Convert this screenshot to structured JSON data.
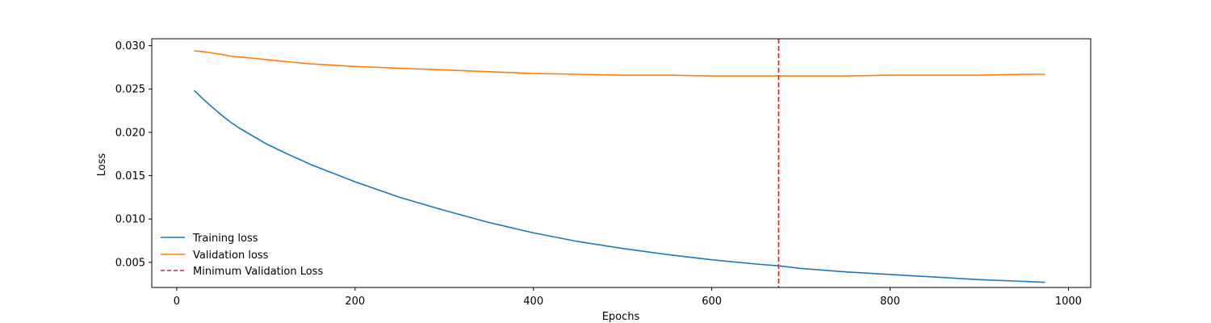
{
  "chart_data": {
    "type": "line",
    "title": "",
    "xlabel": "Epochs",
    "ylabel": "Loss",
    "xlim": [
      -28,
      1025
    ],
    "ylim": [
      0.0021,
      0.0308
    ],
    "xticks": [
      0,
      200,
      400,
      600,
      800,
      1000
    ],
    "xtick_labels": [
      "0",
      "200",
      "400",
      "600",
      "800",
      "1000"
    ],
    "yticks": [
      0.005,
      0.01,
      0.015,
      0.02,
      0.025,
      0.03
    ],
    "ytick_labels": [
      "0.005",
      "0.010",
      "0.015",
      "0.020",
      "0.025",
      "0.030"
    ],
    "grid": false,
    "legend_position": "lower-left",
    "series": [
      {
        "name": "Training loss",
        "color": "#1f77b4",
        "style": "solid",
        "x": [
          20,
          30,
          40,
          50,
          60,
          70,
          80,
          100,
          120,
          150,
          200,
          250,
          300,
          350,
          400,
          450,
          500,
          550,
          600,
          650,
          675,
          700,
          750,
          800,
          850,
          900,
          950,
          973
        ],
        "y": [
          0.0248,
          0.0238,
          0.0229,
          0.022,
          0.0212,
          0.0205,
          0.0199,
          0.0187,
          0.0177,
          0.0163,
          0.0143,
          0.0125,
          0.011,
          0.0096,
          0.0084,
          0.0074,
          0.0066,
          0.0059,
          0.0053,
          0.0048,
          0.0046,
          0.0043,
          0.0039,
          0.0036,
          0.0033,
          0.003,
          0.0028,
          0.0027
        ]
      },
      {
        "name": "Validation loss",
        "color": "#ff7f0e",
        "style": "solid",
        "x": [
          20,
          30,
          50,
          60,
          80,
          100,
          120,
          130,
          150,
          200,
          250,
          300,
          350,
          400,
          450,
          500,
          550,
          600,
          650,
          700,
          750,
          800,
          850,
          900,
          950,
          973
        ],
        "y": [
          0.0294,
          0.0293,
          0.029,
          0.0288,
          0.0286,
          0.0284,
          0.0282,
          0.0281,
          0.0279,
          0.0276,
          0.0274,
          0.0272,
          0.027,
          0.0268,
          0.0267,
          0.0266,
          0.0266,
          0.0265,
          0.0265,
          0.0265,
          0.0265,
          0.0266,
          0.0266,
          0.0266,
          0.0267,
          0.0267
        ]
      }
    ],
    "vlines": [
      {
        "name": "Minimum Validation Loss",
        "x": 675,
        "color": "#d62728",
        "style": "dashed"
      }
    ]
  }
}
